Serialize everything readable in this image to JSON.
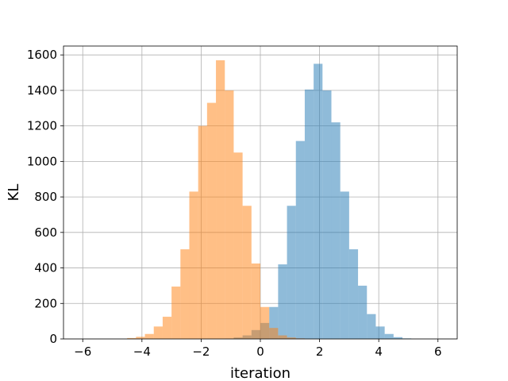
{
  "chart_data": {
    "type": "bar",
    "subtype": "overlapping-histogram",
    "xlabel": "iteration",
    "ylabel": "KL",
    "xlim": [
      -6.65,
      6.65
    ],
    "ylim": [
      0,
      1650
    ],
    "xticks": [
      -6,
      -4,
      -2,
      0,
      2,
      4,
      6
    ],
    "yticks": [
      0,
      200,
      400,
      600,
      800,
      1000,
      1200,
      1400,
      1600
    ],
    "xtick_labels": [
      "−6",
      "−4",
      "−2",
      "0",
      "2",
      "4",
      "6"
    ],
    "ytick_labels": [
      "0",
      "200",
      "400",
      "600",
      "800",
      "1000",
      "1200",
      "1400",
      "1600"
    ],
    "grid": true,
    "bin_width": 0.3,
    "series": [
      {
        "color": "#1f77b4",
        "opacity": 0.5,
        "bin_start": -1.2,
        "counts": [
          2,
          8,
          20,
          50,
          90,
          180,
          420,
          750,
          1115,
          1405,
          1550,
          1400,
          1220,
          830,
          505,
          300,
          140,
          70,
          28,
          10,
          3
        ]
      },
      {
        "color": "#ff7f0e",
        "opacity": 0.5,
        "bin_start": -4.5,
        "counts": [
          5,
          12,
          28,
          70,
          125,
          295,
          505,
          830,
          1200,
          1330,
          1570,
          1400,
          1050,
          750,
          425,
          180,
          62,
          20,
          8,
          3
        ]
      }
    ]
  }
}
